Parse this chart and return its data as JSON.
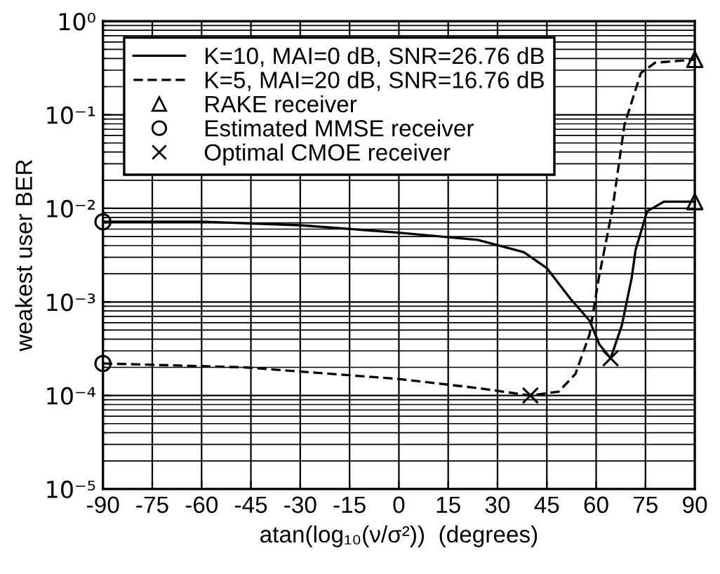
{
  "chart_data": {
    "type": "line",
    "xlabel": "atan(log₁₀(ν/σ²))  (degrees)",
    "ylabel": "weakest user BER",
    "log": "y",
    "xlim": [
      -90,
      90
    ],
    "xticks": [
      -90,
      -75,
      -60,
      -45,
      -30,
      -15,
      0,
      15,
      30,
      45,
      60,
      75,
      90
    ],
    "ylim": [
      1e-05,
      1
    ],
    "yticks": [
      {
        "value": 1e-05,
        "label": "10⁻⁵"
      },
      {
        "value": 0.0001,
        "label": "10⁻⁴"
      },
      {
        "value": 0.001,
        "label": "10⁻³"
      },
      {
        "value": 0.01,
        "label": "10⁻²"
      },
      {
        "value": 0.1,
        "label": "10⁻¹"
      },
      {
        "value": 1,
        "label": "10⁰"
      }
    ],
    "grid": true,
    "legend": "top left",
    "series": [
      {
        "name": "K=10, MAI=0 dB, SNR=26.76 dB",
        "color": "#000000",
        "line_style": "solid",
        "marker": "none",
        "x": [
          -90,
          -60,
          -30,
          0,
          24,
          38,
          45,
          52,
          58,
          61,
          64.4,
          67.8,
          70.8,
          72,
          75.5,
          80.6,
          90
        ],
        "values": [
          0.0072,
          0.0072,
          0.0066,
          0.0055,
          0.0046,
          0.0034,
          0.0023,
          0.0011,
          0.00063,
          0.00035,
          0.00025,
          0.00056,
          0.0018,
          0.0036,
          0.0093,
          0.0118,
          0.0118
        ]
      },
      {
        "name": "K=5, MAI=20 dB, SNR=16.76 dB",
        "color": "#000000",
        "line_style": "dashed",
        "marker": "none",
        "x": [
          -90,
          -47,
          0,
          24,
          40,
          48.6,
          53.7,
          58,
          60.8,
          65,
          68.6,
          73.6,
          77.9,
          90
        ],
        "values": [
          0.00022,
          0.0002,
          0.00015,
          0.00012,
          0.0001,
          0.00011,
          0.00017,
          0.00045,
          0.0018,
          0.01,
          0.078,
          0.28,
          0.36,
          0.39
        ]
      },
      {
        "name": "RAKE receiver",
        "type": "scatter",
        "color": "#000000",
        "marker": "triangle",
        "x": [
          90,
          90
        ],
        "values": [
          0.39,
          0.0118
        ]
      },
      {
        "name": "Estimated MMSE receiver",
        "type": "scatter",
        "color": "#000000",
        "marker": "circle",
        "x": [
          -90,
          -90
        ],
        "values": [
          0.0072,
          0.00022
        ]
      },
      {
        "name": "Optimal CMOE receiver",
        "type": "scatter",
        "color": "#000000",
        "marker": "cross",
        "x": [
          40,
          64.4
        ],
        "values": [
          0.0001,
          0.00025
        ]
      }
    ]
  }
}
